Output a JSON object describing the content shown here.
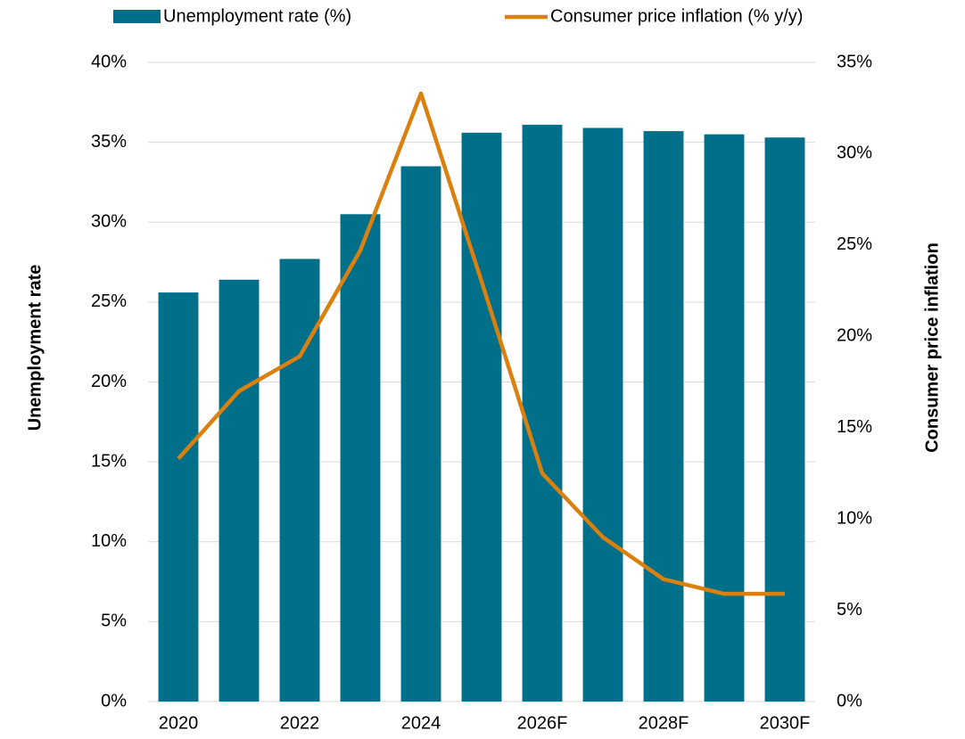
{
  "chart_data": {
    "type": "bar_line",
    "categories": [
      "2020",
      null,
      "2022",
      null,
      "2024",
      null,
      "2026F",
      null,
      "2028F",
      null,
      "2030F"
    ],
    "series": [
      {
        "name": "Unemployment rate (%)",
        "type": "bar",
        "color": "#00708a",
        "axis": "y",
        "values": [
          25.6,
          26.4,
          27.7,
          30.5,
          33.5,
          35.6,
          36.1,
          35.9,
          35.7,
          35.5,
          35.3
        ]
      },
      {
        "name": "Consumer price inflation (% y/y)",
        "type": "line",
        "color": "#d9800e",
        "axis": "y2",
        "values": [
          13.3,
          17.0,
          18.9,
          24.7,
          33.3,
          23.0,
          12.5,
          9.0,
          6.7,
          5.9,
          5.9
        ]
      }
    ],
    "ylabel": "Unemployment rate",
    "y2label": "Consumer price inflation",
    "ylim": [
      0,
      40
    ],
    "yticks": [
      {
        "value": 0,
        "label": "0%"
      },
      {
        "value": 5,
        "label": "5%"
      },
      {
        "value": 10,
        "label": "10%"
      },
      {
        "value": 15,
        "label": "15%"
      },
      {
        "value": 20,
        "label": "20%"
      },
      {
        "value": 25,
        "label": "25%"
      },
      {
        "value": 30,
        "label": "30%"
      },
      {
        "value": 35,
        "label": "35%"
      },
      {
        "value": 40,
        "label": "40%"
      }
    ],
    "y2lim": [
      0,
      35
    ],
    "y2ticks": [
      {
        "value": 0,
        "label": "0%"
      },
      {
        "value": 5,
        "label": "5%"
      },
      {
        "value": 10,
        "label": "10%"
      },
      {
        "value": 15,
        "label": "15%"
      },
      {
        "value": 20,
        "label": "20%"
      },
      {
        "value": 25,
        "label": "25%"
      },
      {
        "value": 30,
        "label": "30%"
      },
      {
        "value": 35,
        "label": "35%"
      }
    ],
    "grid": true,
    "legend": "top"
  }
}
